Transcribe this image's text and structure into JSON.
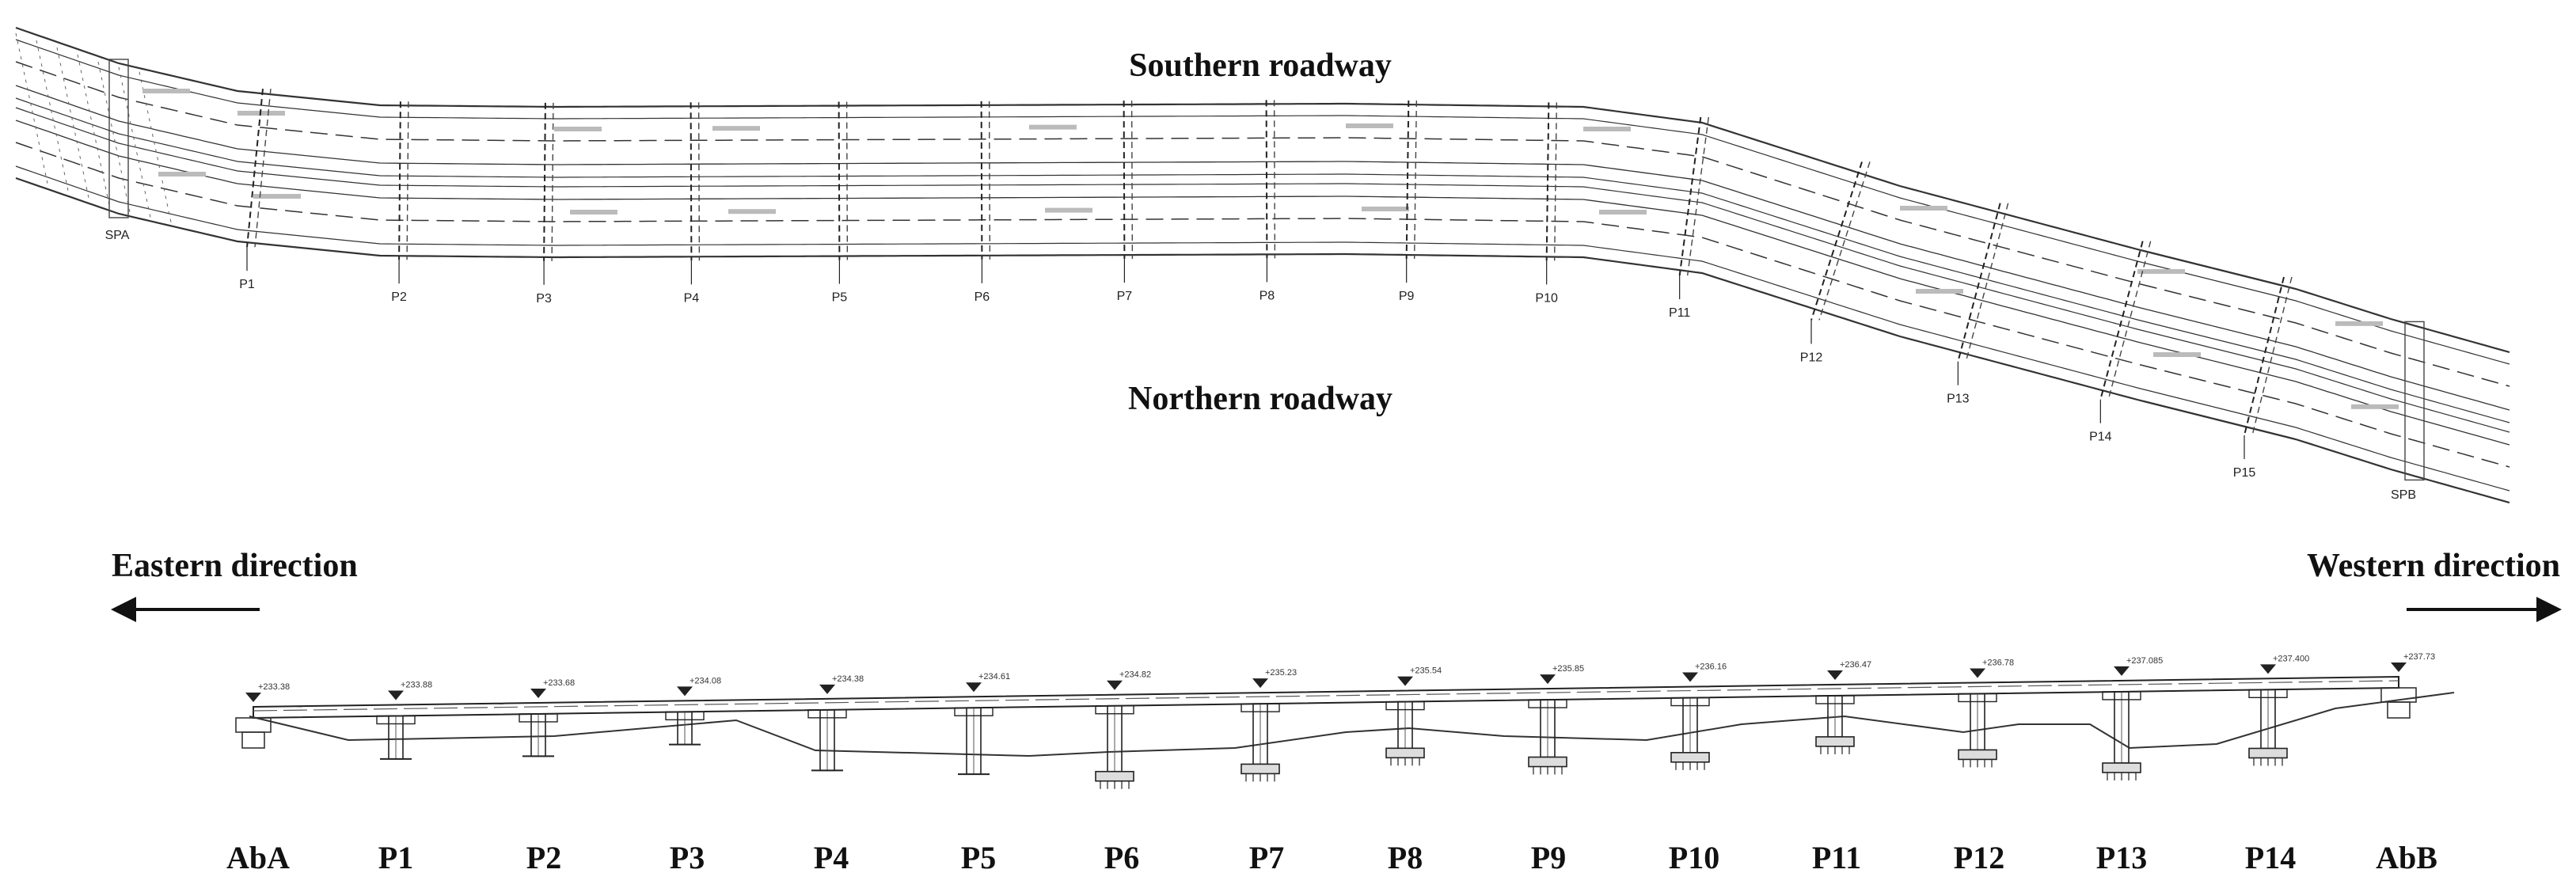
{
  "plan": {
    "southern_label": "Southern roadway",
    "northern_label": "Northern roadway",
    "start_label": "SPA",
    "end_label": "SPB",
    "piers": [
      "P1",
      "P2",
      "P3",
      "P4",
      "P5",
      "P6",
      "P7",
      "P8",
      "P9",
      "P10",
      "P11",
      "P12",
      "P13",
      "P14",
      "P15"
    ]
  },
  "elevation": {
    "left_direction": "Eastern direction",
    "right_direction": "Western direction",
    "supports": [
      "AbA",
      "P1",
      "P2",
      "P3",
      "P4",
      "P5",
      "P6",
      "P7",
      "P8",
      "P9",
      "P10",
      "P11",
      "P12",
      "P13",
      "P14",
      "AbB"
    ],
    "levels": [
      "+233.38",
      "+233.88",
      "+233.68",
      "+234.08",
      "+234.38",
      "+234.61",
      "+234.82",
      "+235.23",
      "+235.54",
      "+235.85",
      "+236.16",
      "+236.47",
      "+236.78",
      "+237.085",
      "+237.400",
      "+237.73"
    ]
  }
}
